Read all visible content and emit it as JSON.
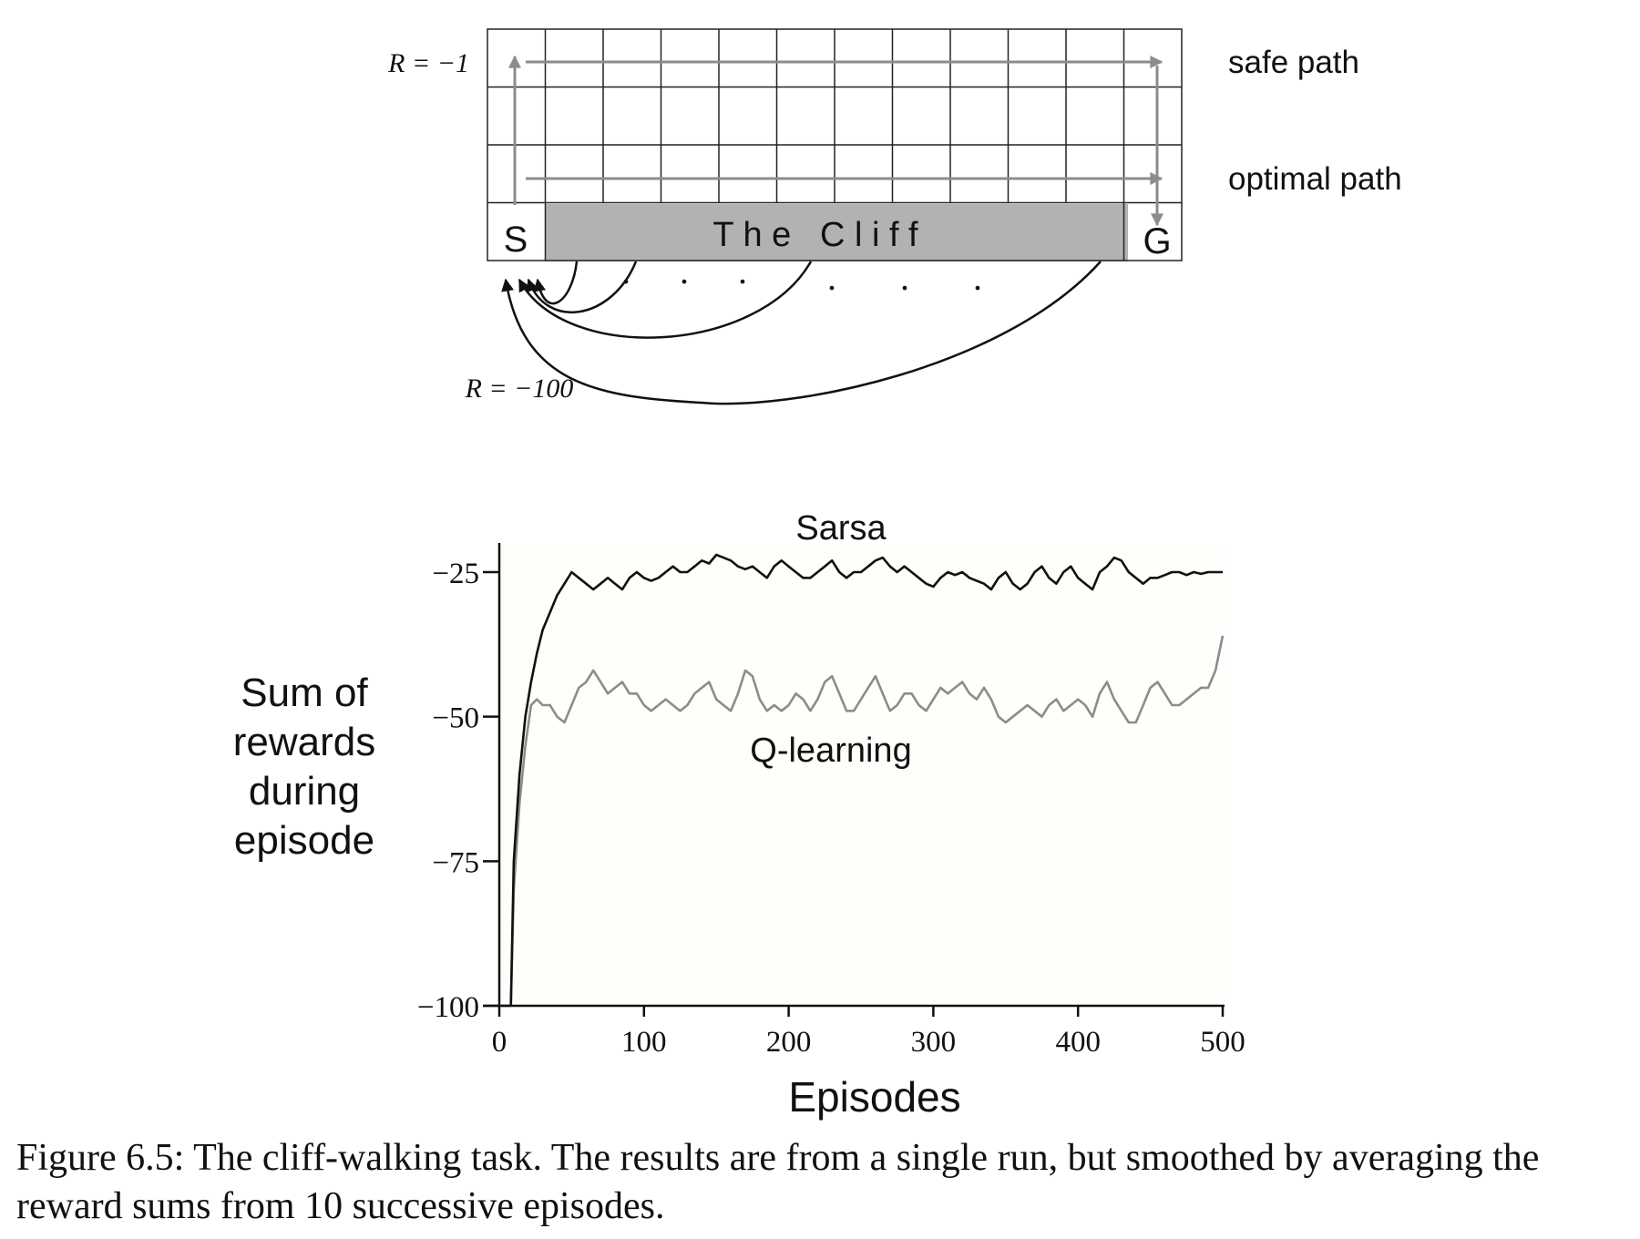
{
  "diagram": {
    "start_label": "S",
    "goal_label": "G",
    "cliff_label": "T h e   C l i f f",
    "safe_path_label": "safe path",
    "optimal_path_label": "optimal path",
    "step_reward_label": "R = −1",
    "cliff_reward_label": "R = −100",
    "dots_left": ". . .",
    "dots_right": ". . .",
    "colors": {
      "cliff_fill": "#b2b2b2",
      "path_arrow": "#8c8c8c",
      "grid": "#222222"
    }
  },
  "chart_data": {
    "type": "line",
    "xlabel": "Episodes",
    "ylabel_lines": [
      "Sum of",
      "rewards",
      "during",
      "episode"
    ],
    "xlim": [
      0,
      500
    ],
    "ylim": [
      -100,
      -20
    ],
    "x_ticks": [
      0,
      100,
      200,
      300,
      400,
      500
    ],
    "y_ticks": [
      -25,
      -50,
      -75,
      -100
    ],
    "x_tick_labels": [
      "0",
      "100",
      "200",
      "300",
      "400",
      "500"
    ],
    "y_tick_labels": [
      "−25",
      "−50",
      "−75",
      "−100"
    ],
    "grid": false,
    "series": [
      {
        "name": "Sarsa",
        "color": "#111111",
        "points": [
          [
            1,
            -100
          ],
          [
            5,
            -100
          ],
          [
            8,
            -100
          ],
          [
            10,
            -75
          ],
          [
            14,
            -60
          ],
          [
            18,
            -50
          ],
          [
            22,
            -44
          ],
          [
            26,
            -39
          ],
          [
            30,
            -35
          ],
          [
            35,
            -32
          ],
          [
            40,
            -29
          ],
          [
            45,
            -27
          ],
          [
            50,
            -25
          ],
          [
            55,
            -26
          ],
          [
            60,
            -27
          ],
          [
            65,
            -28
          ],
          [
            70,
            -27
          ],
          [
            75,
            -26
          ],
          [
            80,
            -27
          ],
          [
            85,
            -28
          ],
          [
            90,
            -26
          ],
          [
            95,
            -25
          ],
          [
            100,
            -26
          ],
          [
            105,
            -26.5
          ],
          [
            110,
            -26
          ],
          [
            115,
            -25
          ],
          [
            120,
            -24
          ],
          [
            125,
            -25
          ],
          [
            130,
            -25
          ],
          [
            135,
            -24
          ],
          [
            140,
            -23
          ],
          [
            145,
            -23.5
          ],
          [
            150,
            -22
          ],
          [
            155,
            -22.5
          ],
          [
            160,
            -23
          ],
          [
            165,
            -24
          ],
          [
            170,
            -24.5
          ],
          [
            175,
            -24
          ],
          [
            180,
            -25
          ],
          [
            185,
            -26
          ],
          [
            190,
            -24
          ],
          [
            195,
            -23
          ],
          [
            200,
            -24
          ],
          [
            205,
            -25
          ],
          [
            210,
            -26
          ],
          [
            215,
            -26
          ],
          [
            220,
            -25
          ],
          [
            225,
            -24
          ],
          [
            230,
            -23
          ],
          [
            235,
            -25
          ],
          [
            240,
            -26
          ],
          [
            245,
            -25
          ],
          [
            250,
            -25
          ],
          [
            255,
            -24
          ],
          [
            260,
            -23
          ],
          [
            265,
            -22.5
          ],
          [
            270,
            -24
          ],
          [
            275,
            -25
          ],
          [
            280,
            -24
          ],
          [
            285,
            -25
          ],
          [
            290,
            -26
          ],
          [
            295,
            -27
          ],
          [
            300,
            -27.5
          ],
          [
            305,
            -26
          ],
          [
            310,
            -25
          ],
          [
            315,
            -25.5
          ],
          [
            320,
            -25
          ],
          [
            325,
            -26
          ],
          [
            330,
            -26.5
          ],
          [
            335,
            -27
          ],
          [
            340,
            -28
          ],
          [
            345,
            -26
          ],
          [
            350,
            -25
          ],
          [
            355,
            -27
          ],
          [
            360,
            -28
          ],
          [
            365,
            -27
          ],
          [
            370,
            -25
          ],
          [
            375,
            -24
          ],
          [
            380,
            -26
          ],
          [
            385,
            -27
          ],
          [
            390,
            -25
          ],
          [
            395,
            -24
          ],
          [
            400,
            -26
          ],
          [
            405,
            -27
          ],
          [
            410,
            -28
          ],
          [
            415,
            -25
          ],
          [
            420,
            -24
          ],
          [
            425,
            -22.5
          ],
          [
            430,
            -23
          ],
          [
            435,
            -25
          ],
          [
            440,
            -26
          ],
          [
            445,
            -27
          ],
          [
            450,
            -26
          ],
          [
            455,
            -26
          ],
          [
            460,
            -25.5
          ],
          [
            465,
            -25
          ],
          [
            470,
            -25
          ],
          [
            475,
            -25.5
          ],
          [
            480,
            -25
          ],
          [
            485,
            -25.3
          ],
          [
            490,
            -25
          ],
          [
            495,
            -25
          ],
          [
            500,
            -25
          ]
        ]
      },
      {
        "name": "Q-learning",
        "color": "#8c8c8c",
        "points": [
          [
            1,
            -100
          ],
          [
            5,
            -100
          ],
          [
            8,
            -100
          ],
          [
            10,
            -80
          ],
          [
            14,
            -65
          ],
          [
            18,
            -55
          ],
          [
            22,
            -48
          ],
          [
            26,
            -47
          ],
          [
            30,
            -48
          ],
          [
            35,
            -48
          ],
          [
            40,
            -50
          ],
          [
            45,
            -51
          ],
          [
            50,
            -48
          ],
          [
            55,
            -45
          ],
          [
            60,
            -44
          ],
          [
            65,
            -42
          ],
          [
            70,
            -44
          ],
          [
            75,
            -46
          ],
          [
            80,
            -45
          ],
          [
            85,
            -44
          ],
          [
            90,
            -46
          ],
          [
            95,
            -46
          ],
          [
            100,
            -48
          ],
          [
            105,
            -49
          ],
          [
            110,
            -48
          ],
          [
            115,
            -47
          ],
          [
            120,
            -48
          ],
          [
            125,
            -49
          ],
          [
            130,
            -48
          ],
          [
            135,
            -46
          ],
          [
            140,
            -45
          ],
          [
            145,
            -44
          ],
          [
            150,
            -47
          ],
          [
            155,
            -48
          ],
          [
            160,
            -49
          ],
          [
            165,
            -46
          ],
          [
            170,
            -42
          ],
          [
            175,
            -43
          ],
          [
            180,
            -47
          ],
          [
            185,
            -49
          ],
          [
            190,
            -48
          ],
          [
            195,
            -49
          ],
          [
            200,
            -48
          ],
          [
            205,
            -46
          ],
          [
            210,
            -47
          ],
          [
            215,
            -49
          ],
          [
            220,
            -47
          ],
          [
            225,
            -44
          ],
          [
            230,
            -43
          ],
          [
            235,
            -46
          ],
          [
            240,
            -49
          ],
          [
            245,
            -49
          ],
          [
            250,
            -47
          ],
          [
            255,
            -45
          ],
          [
            260,
            -43
          ],
          [
            265,
            -46
          ],
          [
            270,
            -49
          ],
          [
            275,
            -48
          ],
          [
            280,
            -46
          ],
          [
            285,
            -46
          ],
          [
            290,
            -48
          ],
          [
            295,
            -49
          ],
          [
            300,
            -47
          ],
          [
            305,
            -45
          ],
          [
            310,
            -46
          ],
          [
            315,
            -45
          ],
          [
            320,
            -44
          ],
          [
            325,
            -46
          ],
          [
            330,
            -47
          ],
          [
            335,
            -45
          ],
          [
            340,
            -47
          ],
          [
            345,
            -50
          ],
          [
            350,
            -51
          ],
          [
            355,
            -50
          ],
          [
            360,
            -49
          ],
          [
            365,
            -48
          ],
          [
            370,
            -49
          ],
          [
            375,
            -50
          ],
          [
            380,
            -48
          ],
          [
            385,
            -47
          ],
          [
            390,
            -49
          ],
          [
            395,
            -48
          ],
          [
            400,
            -47
          ],
          [
            405,
            -48
          ],
          [
            410,
            -50
          ],
          [
            415,
            -46
          ],
          [
            420,
            -44
          ],
          [
            425,
            -47
          ],
          [
            430,
            -49
          ],
          [
            435,
            -51
          ],
          [
            440,
            -51
          ],
          [
            445,
            -48
          ],
          [
            450,
            -45
          ],
          [
            455,
            -44
          ],
          [
            460,
            -46
          ],
          [
            465,
            -48
          ],
          [
            470,
            -48
          ],
          [
            475,
            -47
          ],
          [
            480,
            -46
          ],
          [
            485,
            -45
          ],
          [
            490,
            -45
          ],
          [
            495,
            -42
          ],
          [
            500,
            -36
          ]
        ]
      }
    ]
  },
  "caption": {
    "text": "Figure 6.5:  The cliff-walking task.  The results are from a single run, but smoothed by averaging the reward sums from 10 successive episodes."
  }
}
